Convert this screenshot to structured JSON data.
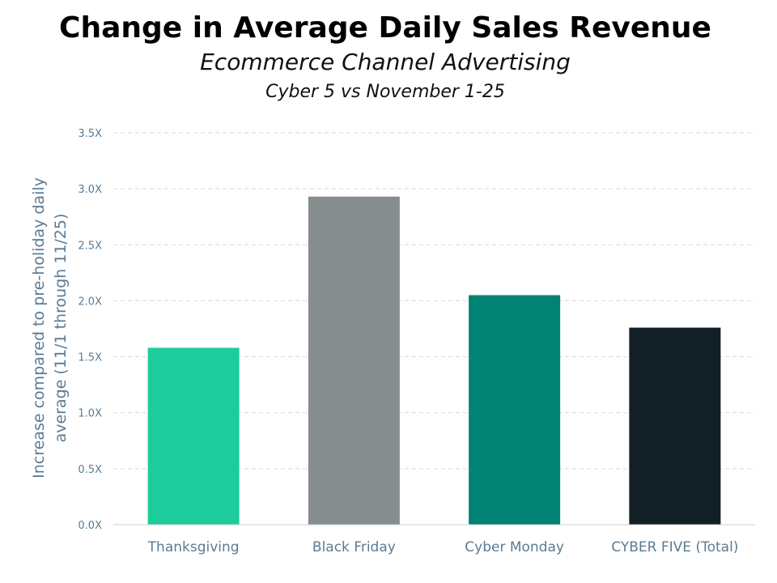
{
  "chart_data": {
    "type": "bar",
    "title": "Change in Average Daily Sales Revenue",
    "subtitle": "Ecommerce Channel Advertising",
    "subtitle2": "Cyber 5 vs November 1-25",
    "xlabel": "",
    "ylabel_line1": "Increase compared to pre-holiday daily",
    "ylabel_line2": "average (11/1 through 11/25)",
    "categories": [
      "Thanksgiving",
      "Black Friday",
      "Cyber Monday",
      "CYBER FIVE (Total)"
    ],
    "values": [
      1.58,
      2.93,
      2.05,
      1.76
    ],
    "ylim": [
      0,
      3.5
    ],
    "yticks": [
      0,
      0.5,
      1.0,
      1.5,
      2.0,
      2.5,
      3.0,
      3.5
    ],
    "ytick_labels": [
      "0.0X",
      "0.5X",
      "1.0X",
      "1.5X",
      "2.0X",
      "2.5X",
      "3.0X",
      "3.5X"
    ],
    "grid": true,
    "bar_colors": [
      "#1ccd9b",
      "#868d8e",
      "#028272",
      "#131f26"
    ],
    "axis_text_color": "#5b7b92",
    "grid_color": "#d9d9d9"
  }
}
